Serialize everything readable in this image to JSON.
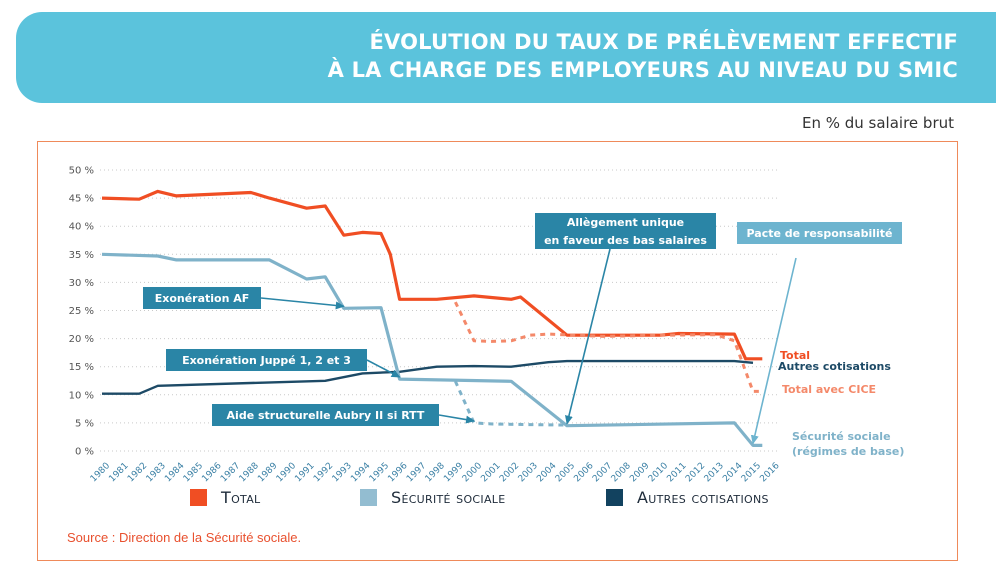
{
  "header": {
    "title_line1": "ÉVOLUTION DU TAUX DE PRÉLÈVEMENT EFFECTIF",
    "title_line2": "À LA CHARGE DES EMPLOYEURS AU NIVEAU DU SMIC"
  },
  "unit_label": "En % du salaire brut",
  "source": "Source : Direction de la Sécurité sociale.",
  "colors": {
    "total": "#f04e23",
    "total_cice": "#f4896a",
    "securite": "#7fb2c9",
    "autres": "#1d4a66",
    "annotation_box": "#2a85a6",
    "pacte_box": "#6db4cf"
  },
  "legend": [
    {
      "label": "Total",
      "color": "#f04e23"
    },
    {
      "label": "Sécurité sociale",
      "color": "#93bdd1"
    },
    {
      "label": "Autres cotisations",
      "color": "#12425f"
    }
  ],
  "chart_data": {
    "type": "line",
    "ylim": [
      0,
      50
    ],
    "y_ticks": [
      "0 %",
      "5 %",
      "10 %",
      "15 %",
      "20 %",
      "25 %",
      "30 %",
      "35 %",
      "40 %",
      "45 %",
      "50 %"
    ],
    "x": [
      1980,
      1981,
      1982,
      1983,
      1984,
      1985,
      1986,
      1987,
      1988,
      1989,
      1990,
      1991,
      1992,
      1993,
      1994,
      1995,
      1996,
      1997,
      1998,
      1999,
      2000,
      2001,
      2002,
      2003,
      2004,
      2005,
      2006,
      2007,
      2008,
      2009,
      2010,
      2011,
      2012,
      2013,
      2014,
      2015,
      2016
    ],
    "series": [
      {
        "name": "Total",
        "points": [
          [
            1980,
            45
          ],
          [
            1982,
            44.8
          ],
          [
            1983,
            46.2
          ],
          [
            1984,
            45.4
          ],
          [
            1988,
            46
          ],
          [
            1989,
            45
          ],
          [
            1991,
            43.2
          ],
          [
            1992,
            43.6
          ],
          [
            1993,
            38.4
          ],
          [
            1994,
            38.9
          ],
          [
            1995,
            38.7
          ],
          [
            1995.5,
            35
          ],
          [
            1996,
            27
          ],
          [
            1998,
            27
          ],
          [
            2000,
            27.6
          ],
          [
            2001,
            27.3
          ],
          [
            2002,
            27
          ],
          [
            2002.5,
            27.4
          ],
          [
            2005,
            20.6
          ],
          [
            2010,
            20.6
          ],
          [
            2011,
            20.9
          ],
          [
            2014,
            20.8
          ],
          [
            2014.6,
            16.4
          ],
          [
            2015.5,
            16.4
          ]
        ]
      },
      {
        "name": "Total avec CICE",
        "points": [
          [
            1999,
            26.5
          ],
          [
            2000,
            19.6
          ],
          [
            2001,
            19.5
          ],
          [
            2002,
            19.6
          ],
          [
            2003,
            20.6
          ],
          [
            2004,
            20.8
          ],
          [
            2007,
            20.4
          ],
          [
            2010,
            20.6
          ],
          [
            2013,
            20.7
          ],
          [
            2014,
            19.6
          ],
          [
            2015,
            10.6
          ],
          [
            2015.5,
            10.6
          ]
        ]
      },
      {
        "name": "Sécurité sociale",
        "points": [
          [
            1980,
            35
          ],
          [
            1983,
            34.7
          ],
          [
            1984,
            34
          ],
          [
            1989,
            34
          ],
          [
            1991,
            30.6
          ],
          [
            1992,
            31
          ],
          [
            1993,
            25.4
          ],
          [
            1995,
            25.5
          ],
          [
            1996,
            12.8
          ],
          [
            2002,
            12.4
          ],
          [
            2005,
            4.5
          ],
          [
            2014,
            5
          ],
          [
            2015,
            1
          ],
          [
            2015.5,
            1
          ]
        ]
      },
      {
        "name": "Sécurité sociale (dashed)",
        "points": [
          [
            1999,
            12.4
          ],
          [
            2000,
            5
          ],
          [
            2001,
            4.8
          ],
          [
            2003,
            4.7
          ],
          [
            2005,
            4.6
          ]
        ]
      },
      {
        "name": "Autres cotisations",
        "points": [
          [
            1980,
            10.2
          ],
          [
            1982,
            10.2
          ],
          [
            1983,
            11.6
          ],
          [
            1988,
            12.1
          ],
          [
            1992,
            12.5
          ],
          [
            1994,
            13.8
          ],
          [
            1996,
            14.1
          ],
          [
            1998,
            15
          ],
          [
            2000,
            15.1
          ],
          [
            2002,
            15
          ],
          [
            2004,
            15.8
          ],
          [
            2005,
            16
          ],
          [
            2014,
            16
          ],
          [
            2015,
            15.7
          ]
        ]
      }
    ],
    "end_labels": {
      "total": "Total",
      "autres": "Autres cotisations",
      "cice": "Total avec CICE",
      "secu_line1": "Sécurité sociale",
      "secu_line2": "(régimes de base)"
    },
    "annotations": [
      {
        "id": "af",
        "text": "Exonération AF",
        "arrow_to": [
          1993,
          25.4
        ]
      },
      {
        "id": "juppe",
        "text": "Exonération Juppé 1, 2 et 3",
        "arrow_to": [
          1996,
          12.8
        ]
      },
      {
        "id": "aubry",
        "text": "Aide structurelle Aubry II si RTT",
        "arrow_to": [
          2000,
          5
        ]
      },
      {
        "id": "allegement",
        "text_line1": "Allègement unique",
        "text_line2": "en faveur des bas salaires",
        "arrow_to": [
          2005,
          4.5
        ]
      },
      {
        "id": "pacte",
        "text": "Pacte de responsabilité",
        "arrow_to": [
          2015,
          1
        ]
      }
    ]
  }
}
